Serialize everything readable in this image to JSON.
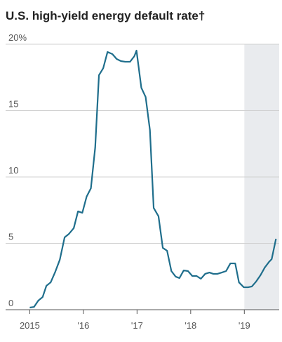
{
  "chart_data": {
    "type": "line",
    "title": "U.S. high-yield energy default rate†",
    "x": [
      2015.0,
      2015.08,
      2015.16,
      2015.24,
      2015.31,
      2015.39,
      2015.47,
      2015.56,
      2015.65,
      2015.73,
      2015.82,
      2015.9,
      2015.98,
      2016.06,
      2016.14,
      2016.22,
      2016.29,
      2016.37,
      2016.45,
      2016.54,
      2016.62,
      2016.7,
      2016.78,
      2016.87,
      2016.95,
      2016.99,
      2017.08,
      2017.16,
      2017.24,
      2017.31,
      2017.4,
      2017.48,
      2017.56,
      2017.64,
      2017.72,
      2017.79,
      2017.87,
      2017.95,
      2018.03,
      2018.11,
      2018.19,
      2018.27,
      2018.35,
      2018.42,
      2018.5,
      2018.58,
      2018.66,
      2018.74,
      2018.83,
      2018.9,
      2018.99,
      2019.07,
      2019.14,
      2019.22,
      2019.3,
      2019.38,
      2019.46,
      2019.51,
      2019.59
    ],
    "series": [
      {
        "color": "#1f6e8c",
        "values": [
          0.16,
          0.21,
          0.69,
          0.95,
          1.8,
          2.06,
          2.8,
          3.76,
          5.45,
          5.71,
          6.14,
          7.41,
          7.3,
          8.52,
          9.15,
          12.22,
          17.67,
          18.2,
          19.42,
          19.26,
          18.89,
          18.73,
          18.68,
          18.68,
          19.1,
          19.52,
          16.72,
          16.03,
          13.54,
          7.67,
          7.04,
          4.66,
          4.44,
          2.91,
          2.49,
          2.38,
          2.96,
          2.91,
          2.54,
          2.54,
          2.33,
          2.7,
          2.8,
          2.7,
          2.7,
          2.8,
          2.91,
          3.49,
          3.49,
          2.06,
          1.69,
          1.69,
          1.75,
          2.12,
          2.59,
          3.17,
          3.6,
          3.81,
          5.34
        ]
      }
    ],
    "xlim": [
      2014.55,
      2019.65
    ],
    "xticks": [
      2015,
      {
        "value": 2016,
        "label": "'16"
      },
      {
        "value": 2017,
        "label": "'17"
      },
      {
        "value": 2018,
        "label": "'18"
      },
      {
        "value": 2019,
        "label": "'19"
      }
    ],
    "ylim": [
      0,
      20
    ],
    "yticks": [
      0,
      5,
      10,
      15,
      {
        "value": 20,
        "label": "20%"
      }
    ],
    "grid": true,
    "shaded_range": [
      2019,
      2019.65
    ],
    "shade_color": "#e9ebee"
  }
}
